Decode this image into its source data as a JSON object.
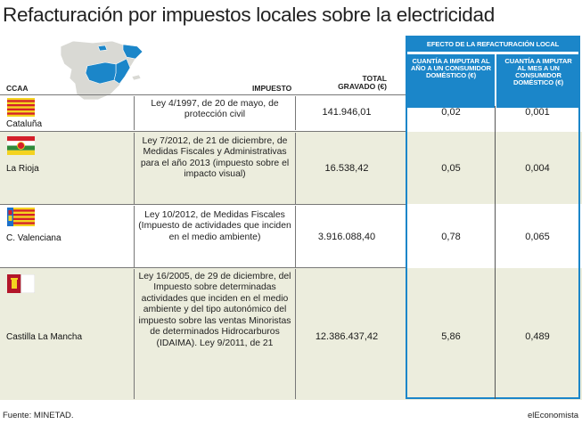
{
  "title": "Refacturación por impuestos locales sobre la electricidad",
  "headers": {
    "ccaa": "CCAA",
    "impuesto": "IMPUESTO",
    "total_line1": "TOTAL",
    "total_line2": "GRAVADO (€)",
    "effect": "EFECTO DE LA REFACTURACIÓN LOCAL",
    "annual": "CUANTÍA A IMPUTAR AL AÑO A UN CONSUMIDOR DOMÉSTICO (€)",
    "monthly": "CUANTÍA A IMPUTAR AL MES A UN CONSUMIDOR DOMÉSTICO (€)"
  },
  "colors": {
    "accent": "#1b86c9",
    "row_shade": "#eceddd",
    "map_highlight": "#1b86c9",
    "map_base": "#d9d9d4"
  },
  "rows": [
    {
      "ccaa": "Cataluña",
      "flag": "flag-cataluna-icon",
      "impuesto": "Ley 4/1997, de 20 de mayo, de protección civil",
      "total": "141.946,01",
      "anual": "0,02",
      "mensual": "0,001"
    },
    {
      "ccaa": "La Rioja",
      "flag": "flag-la-rioja-icon",
      "impuesto": "Ley 7/2012, de 21 de diciembre, de Medidas Fiscales y Administrativas para el año 2013 (impuesto sobre el impacto visual)",
      "total": "16.538,42",
      "anual": "0,05",
      "mensual": "0,004"
    },
    {
      "ccaa": "C. Valenciana",
      "flag": "flag-valenciana-icon",
      "impuesto": "Ley 10/2012, de Medidas Fiscales (Impuesto de actividades que inciden en el medio ambiente)",
      "total": "3.916.088,40",
      "anual": "0,78",
      "mensual": "0,065"
    },
    {
      "ccaa": "Castilla La Mancha",
      "flag": "flag-castilla-la-mancha-icon",
      "impuesto": "Ley 16/2005, de 29 de diciembre, del Impuesto sobre determinadas actividades que inciden en el medio ambiente y del tipo autonómico del impuesto sobre las ventas Minoristas de determinados Hidrocarburos (IDAIMA). Ley 9/2011, de 21",
      "total": "12.386.437,42",
      "anual": "5,86",
      "mensual": "0,489"
    }
  ],
  "footer": {
    "source": "Fuente: MINETAD.",
    "brand": "elEconomista"
  }
}
